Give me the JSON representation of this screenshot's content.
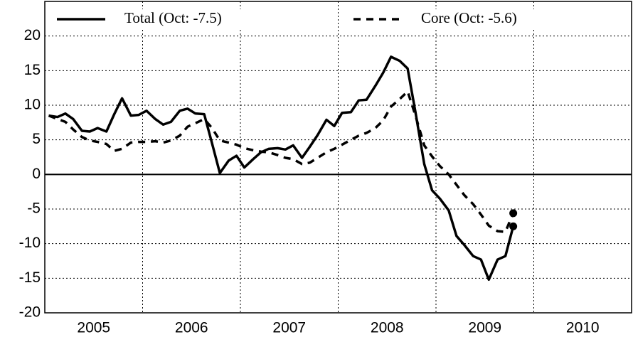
{
  "chart_data": {
    "type": "line",
    "x": [
      2005.04,
      2005.13,
      2005.21,
      2005.29,
      2005.38,
      2005.46,
      2005.54,
      2005.63,
      2005.71,
      2005.79,
      2005.88,
      2005.96,
      2006.04,
      2006.13,
      2006.21,
      2006.29,
      2006.38,
      2006.46,
      2006.54,
      2006.63,
      2006.71,
      2006.79,
      2006.88,
      2006.96,
      2007.04,
      2007.13,
      2007.21,
      2007.29,
      2007.38,
      2007.46,
      2007.54,
      2007.63,
      2007.71,
      2007.79,
      2007.88,
      2007.96,
      2008.04,
      2008.13,
      2008.21,
      2008.29,
      2008.38,
      2008.46,
      2008.54,
      2008.63,
      2008.71,
      2008.79,
      2008.88,
      2008.96,
      2009.04,
      2009.13,
      2009.21,
      2009.29,
      2009.38,
      2009.46,
      2009.54,
      2009.63,
      2009.71,
      2009.79
    ],
    "series": [
      {
        "name": "Total (Oct: -7.5)",
        "color": "#000000",
        "dash": "solid",
        "values": [
          8.5,
          8.3,
          8.8,
          8.0,
          6.3,
          6.2,
          6.7,
          6.2,
          8.7,
          11.0,
          8.5,
          8.6,
          9.2,
          8.0,
          7.2,
          7.6,
          9.2,
          9.5,
          8.8,
          8.7,
          4.5,
          0.2,
          2.0,
          2.7,
          1.0,
          2.2,
          3.2,
          3.7,
          3.8,
          3.6,
          4.2,
          2.4,
          4.0,
          5.7,
          7.9,
          7.0,
          8.9,
          9.0,
          10.7,
          10.8,
          12.8,
          14.7,
          17.0,
          16.4,
          15.3,
          9.0,
          1.5,
          -2.3,
          -3.5,
          -5.2,
          -8.9,
          -10.2,
          -11.8,
          -12.3,
          -15.2,
          -12.3,
          -11.8,
          -7.5
        ]
      },
      {
        "name": "Core (Oct: -5.6)",
        "color": "#000000",
        "dash": "dashed",
        "values": [
          8.5,
          8.0,
          7.6,
          6.5,
          5.4,
          4.9,
          4.7,
          4.4,
          3.4,
          3.7,
          4.6,
          4.7,
          4.7,
          4.8,
          4.6,
          4.9,
          5.6,
          6.9,
          7.4,
          8.0,
          6.7,
          4.9,
          4.6,
          4.3,
          3.8,
          3.5,
          3.3,
          3.2,
          2.8,
          2.4,
          2.2,
          1.5,
          1.7,
          2.4,
          3.2,
          3.7,
          4.3,
          5.0,
          5.6,
          6.0,
          6.7,
          7.8,
          9.8,
          10.9,
          12.0,
          8.5,
          4.2,
          2.6,
          1.2,
          0,
          -1.5,
          -3.0,
          -4.3,
          -5.8,
          -7.4,
          -8.2,
          -8.3,
          -5.6
        ]
      }
    ],
    "end_markers": true,
    "xlim": [
      2005,
      2011
    ],
    "xticks": [
      {
        "value": 2005.5,
        "label": "2005"
      },
      {
        "value": 2006.5,
        "label": "2006"
      },
      {
        "value": 2007.5,
        "label": "2007"
      },
      {
        "value": 2008.5,
        "label": "2008"
      },
      {
        "value": 2009.5,
        "label": "2009"
      },
      {
        "value": 2010.5,
        "label": "2010"
      }
    ],
    "xgrid_lines": [
      2006,
      2007,
      2008,
      2009,
      2010
    ],
    "ylim": [
      -20,
      25
    ],
    "yticks": [
      -20,
      -15,
      -10,
      -5,
      0,
      5,
      10,
      15,
      20
    ],
    "grid": true,
    "legend": "top"
  }
}
